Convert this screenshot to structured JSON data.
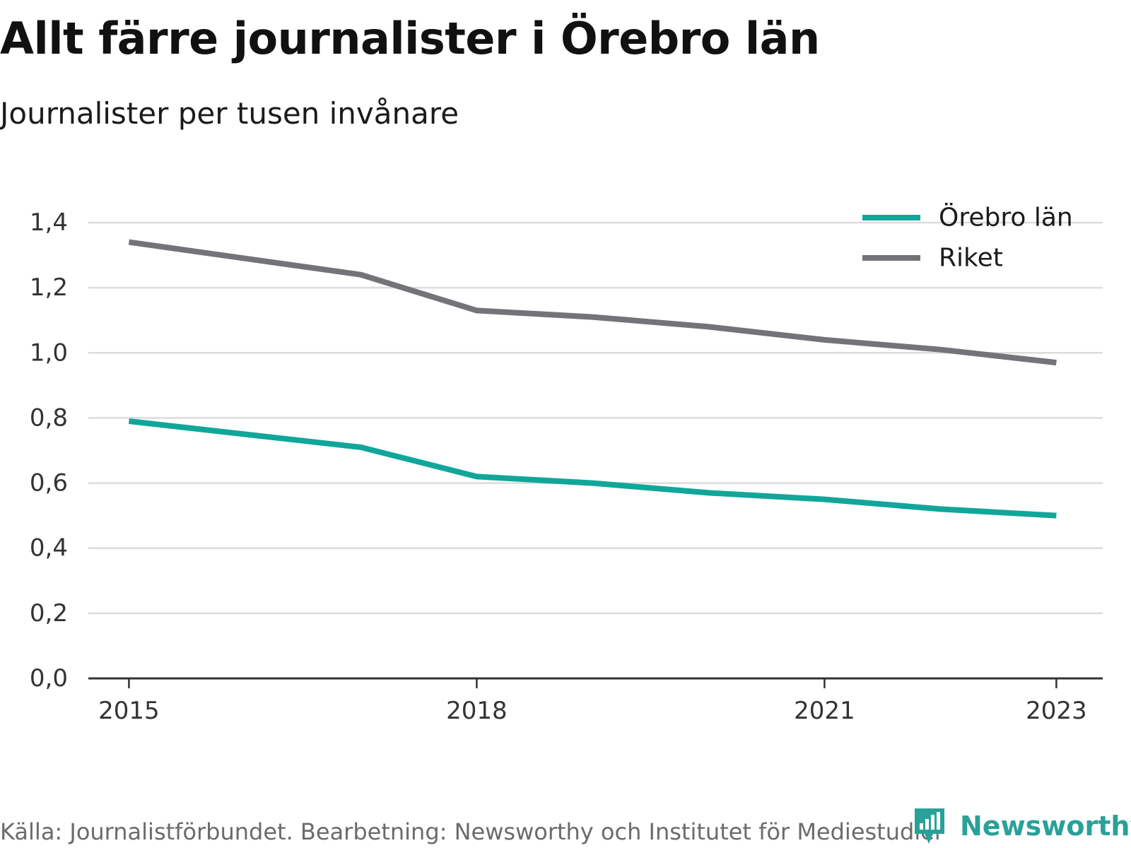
{
  "header": {
    "title": "Allt färre journalister i Örebro län",
    "subtitle": "Journalister per tusen invånare"
  },
  "footer": {
    "source": "Källa: Journalistförbundet. Bearbetning: Newsworthy och Institutet för Mediestudier",
    "brand": "Newsworthy",
    "brand_icon": "newsworthy-logo-icon"
  },
  "chart_data": {
    "type": "line",
    "title": "Allt färre journalister i Örebro län",
    "subtitle": "Journalister per tusen invånare",
    "xlabel": "",
    "ylabel": "",
    "x": [
      2015,
      2018,
      2021,
      2023
    ],
    "xticks": [
      2015,
      2018,
      2021,
      2023
    ],
    "xtick_labels": [
      "2015",
      "2018",
      "2021",
      "2023"
    ],
    "xlim": [
      2014.65,
      2023.4
    ],
    "ylim": [
      0,
      1.4
    ],
    "yticks": [
      0,
      0.2,
      0.4,
      0.6,
      0.8,
      1.0,
      1.2,
      1.4
    ],
    "ytick_labels": [
      "0,0",
      "0,2",
      "0,4",
      "0,6",
      "0,8",
      "1,0",
      "1,2",
      "1,4"
    ],
    "grid": "horizontal",
    "legend": "top-right",
    "series": [
      {
        "name": "Örebro län",
        "color": "#11a69a",
        "x": [
          2015,
          2016,
          2017,
          2018,
          2019,
          2020,
          2021,
          2022,
          2023
        ],
        "values": [
          0.79,
          0.75,
          0.71,
          0.62,
          0.6,
          0.57,
          0.55,
          0.52,
          0.5
        ]
      },
      {
        "name": "Riket",
        "color": "#737378",
        "x": [
          2015,
          2016,
          2017,
          2018,
          2019,
          2020,
          2021,
          2022,
          2023
        ],
        "values": [
          1.34,
          1.29,
          1.24,
          1.13,
          1.11,
          1.08,
          1.04,
          1.01,
          0.97
        ]
      }
    ]
  }
}
